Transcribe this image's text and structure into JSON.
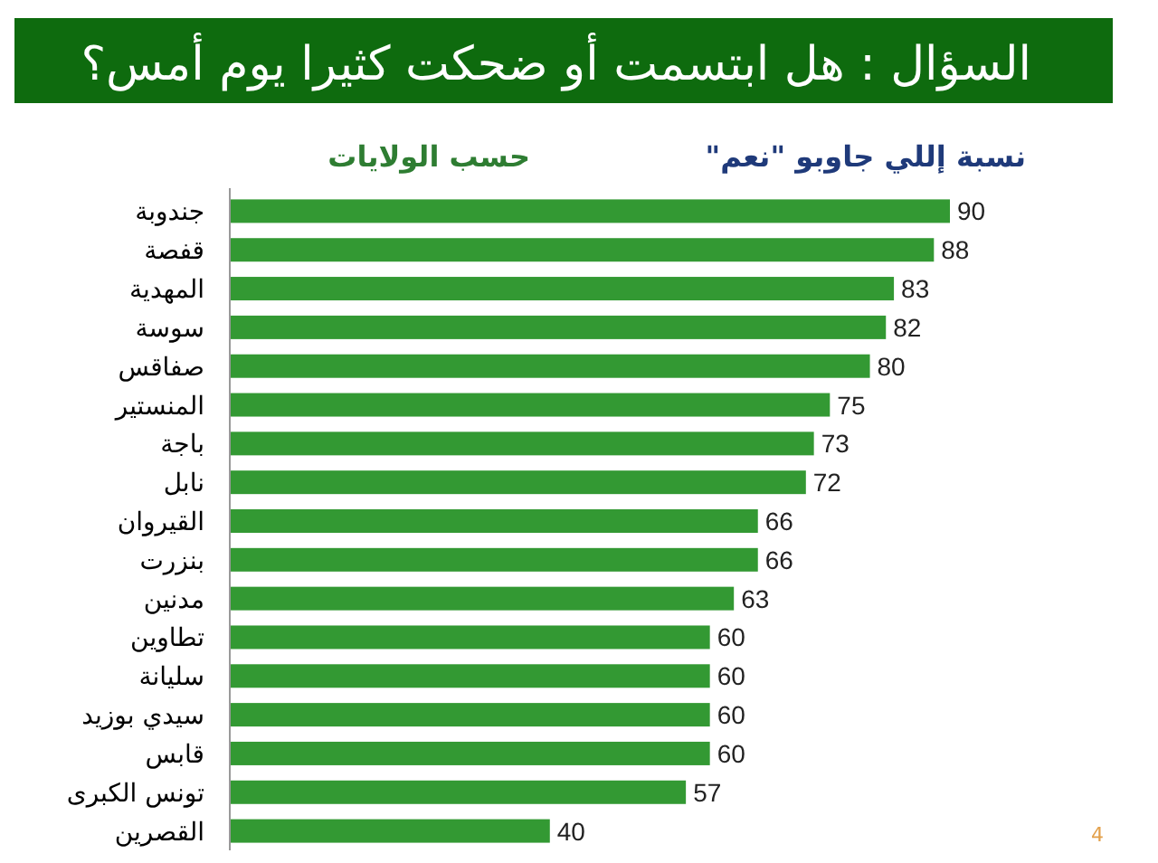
{
  "chart_data": {
    "type": "bar",
    "orientation": "horizontal",
    "title": "السؤال : هل ابتسمت أو ضحكت كثيرا يوم أمس؟",
    "subtitle": "نسبة إللي جاوبو \"نعم\"",
    "ylabel": "حسب الولايات",
    "categories": [
      "جندوبة",
      "قفصة",
      "المهدية",
      "سوسة",
      "صفاقس",
      "المنستير",
      "باجة",
      "نابل",
      "القيروان",
      "بنزرت",
      "مدنين",
      "تطاوين",
      "سليانة",
      "سيدي بوزيد",
      "قابس",
      "تونس الكبرى",
      "القصرين"
    ],
    "values": [
      90,
      88,
      83,
      82,
      80,
      75,
      73,
      72,
      66,
      66,
      63,
      60,
      60,
      60,
      60,
      57,
      40
    ],
    "color": "#339933",
    "data_labels": true,
    "annotations": [
      "4"
    ]
  }
}
